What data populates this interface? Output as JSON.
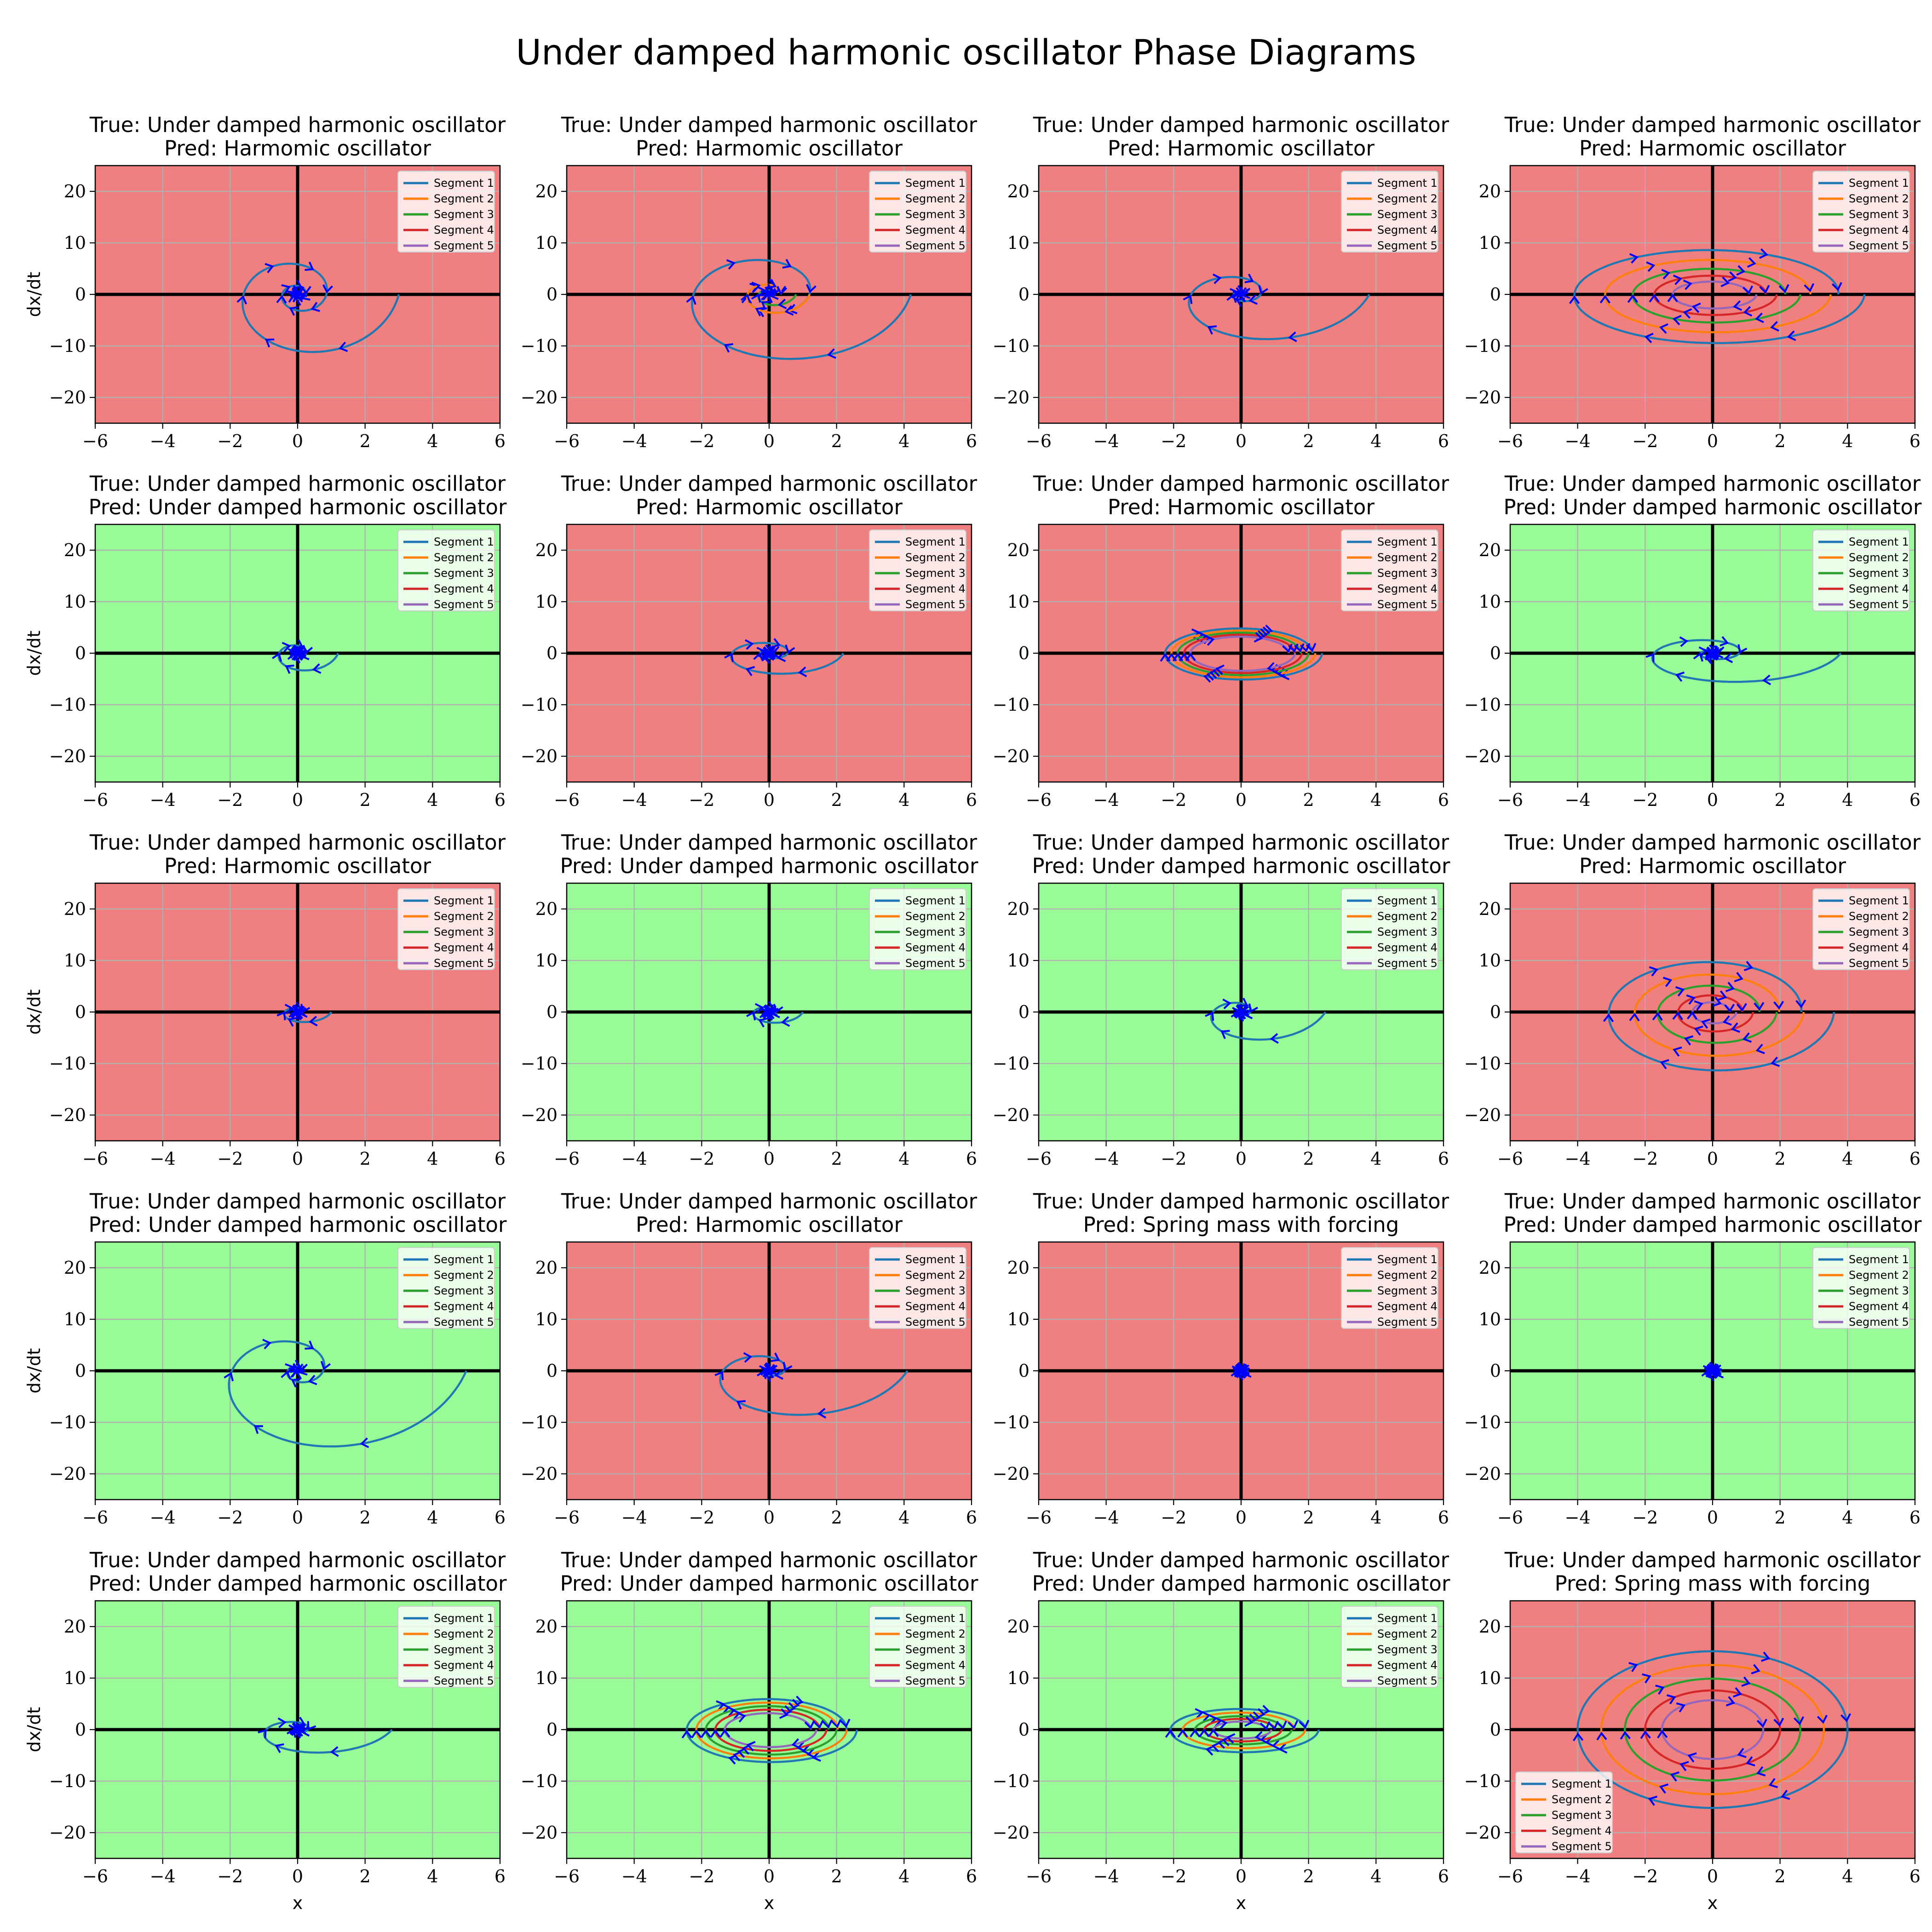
{
  "figure": {
    "suptitle": "Under damped harmonic oscillator Phase Diagrams",
    "x_label": "x",
    "y_label": "dx/dt"
  },
  "colors": {
    "correct_bg": "#98fb98",
    "incorrect_bg": "#f08080",
    "segments": [
      "#1f77b4",
      "#ff7f0e",
      "#2ca02c",
      "#d62728",
      "#9467bd"
    ],
    "arrow": "#0000ff",
    "axis_line": "#000000",
    "grid": "#b0b0b0"
  },
  "chart_data": {
    "type": "line",
    "layout_grid": {
      "rows": 5,
      "cols": 4
    },
    "xlim": [
      -6,
      6
    ],
    "ylim": [
      -25,
      25
    ],
    "x_ticks": [
      "−6",
      "−4",
      "−2",
      "0",
      "2",
      "4",
      "6"
    ],
    "y_ticks": [
      "20",
      "10",
      "0",
      "−10",
      "−20"
    ],
    "grid": true,
    "legend_entries": [
      "Segment 1",
      "Segment 2",
      "Segment 3",
      "Segment 4",
      "Segment 5"
    ],
    "panels": [
      {
        "title_true": "True: Under damped harmonic oscillator",
        "title_pred": "Pred: Harmomic oscillator",
        "correct": false,
        "legend_position": "upper right",
        "segments": [
          {
            "amp": 3.0,
            "dx": 5,
            "decay": 0.2,
            "turns": 4
          }
        ]
      },
      {
        "title_true": "True: Under damped harmonic oscillator",
        "title_pred": "Pred: Harmomic oscillator",
        "correct": false,
        "legend_position": "upper right",
        "segments": [
          {
            "amp": 4.2,
            "dx": 4,
            "decay": 0.2,
            "turns": 2
          },
          {
            "amp": 1.2,
            "dx": 4,
            "decay": 0.2,
            "turns": 1
          },
          {
            "amp": 0.8,
            "dx": 4,
            "decay": 0.3,
            "turns": 2
          }
        ]
      },
      {
        "title_true": "True: Under damped harmonic oscillator",
        "title_pred": "Pred: Harmomic oscillator",
        "correct": false,
        "legend_position": "upper right",
        "segments": [
          {
            "amp": 3.8,
            "dx": 3.5,
            "decay": 0.3,
            "turns": 3
          }
        ]
      },
      {
        "title_true": "True: Under damped harmonic oscillator",
        "title_pred": "Pred: Harmomic oscillator",
        "correct": false,
        "legend_position": "upper right",
        "segments": [
          {
            "amp": 4.5,
            "dx": 2.2,
            "decay": 0.03,
            "turns": 1
          },
          {
            "amp": 3.5,
            "dx": 2.2,
            "decay": 0.03,
            "turns": 1
          },
          {
            "amp": 2.6,
            "dx": 2.2,
            "decay": 0.03,
            "turns": 1
          },
          {
            "amp": 1.9,
            "dx": 2.2,
            "decay": 0.03,
            "turns": 1
          },
          {
            "amp": 1.3,
            "dx": 2.2,
            "decay": 0.03,
            "turns": 1
          }
        ]
      },
      {
        "title_true": "True: Under damped harmonic oscillator",
        "title_pred": "Pred: Under damped harmonic oscillator",
        "correct": true,
        "legend_position": "upper right",
        "segments": [
          {
            "amp": 1.2,
            "dx": 4,
            "decay": 0.25,
            "turns": 4
          }
        ]
      },
      {
        "title_true": "True: Under damped harmonic oscillator",
        "title_pred": "Pred: Harmomic oscillator",
        "correct": false,
        "legend_position": "upper right",
        "segments": [
          {
            "amp": 2.2,
            "dx": 2.5,
            "decay": 0.22,
            "turns": 4
          }
        ]
      },
      {
        "title_true": "True: Under damped harmonic oscillator",
        "title_pred": "Pred: Harmomic oscillator",
        "correct": false,
        "legend_position": "upper right",
        "segments": [
          {
            "amp": 2.4,
            "dx": 2.2,
            "decay": 0.02,
            "turns": 1
          },
          {
            "amp": 2.2,
            "dx": 2.2,
            "decay": 0.02,
            "turns": 1
          },
          {
            "amp": 2.0,
            "dx": 2.2,
            "decay": 0.02,
            "turns": 1
          },
          {
            "amp": 1.8,
            "dx": 2.2,
            "decay": 0.02,
            "turns": 1
          },
          {
            "amp": 1.6,
            "dx": 2.2,
            "decay": 0.02,
            "turns": 1
          }
        ]
      },
      {
        "title_true": "True: Under damped harmonic oscillator",
        "title_pred": "Pred: Under damped harmonic oscillator",
        "correct": true,
        "legend_position": "upper right",
        "segments": [
          {
            "amp": 3.8,
            "dx": 2.1,
            "decay": 0.25,
            "turns": 4
          }
        ]
      },
      {
        "title_true": "True: Under damped harmonic oscillator",
        "title_pred": "Pred: Harmomic oscillator",
        "correct": false,
        "legend_position": "upper right",
        "segments": [
          {
            "amp": 1.0,
            "dx": 3,
            "decay": 0.3,
            "turns": 3
          }
        ]
      },
      {
        "title_true": "True: Under damped harmonic oscillator",
        "title_pred": "Pred: Under damped harmonic oscillator",
        "correct": true,
        "legend_position": "upper right",
        "segments": [
          {
            "amp": 1.0,
            "dx": 3,
            "decay": 0.25,
            "turns": 3
          }
        ]
      },
      {
        "title_true": "True: Under damped harmonic oscillator",
        "title_pred": "Pred: Under damped harmonic oscillator",
        "correct": true,
        "legend_position": "upper right",
        "segments": [
          {
            "amp": 2.5,
            "dx": 3.5,
            "decay": 0.35,
            "turns": 3
          }
        ]
      },
      {
        "title_true": "True: Under damped harmonic oscillator",
        "title_pred": "Pred: Harmomic oscillator",
        "correct": false,
        "legend_position": "upper right",
        "segments": [
          {
            "amp": 3.6,
            "dx": 3.4,
            "decay": 0.05,
            "turns": 1
          },
          {
            "amp": 2.7,
            "dx": 3.4,
            "decay": 0.05,
            "turns": 1
          },
          {
            "amp": 1.9,
            "dx": 3.4,
            "decay": 0.05,
            "turns": 1
          },
          {
            "amp": 1.2,
            "dx": 3.4,
            "decay": 0.05,
            "turns": 1
          },
          {
            "amp": 0.7,
            "dx": 3.4,
            "decay": 0.05,
            "turns": 1
          }
        ]
      },
      {
        "title_true": "True: Under damped harmonic oscillator",
        "title_pred": "Pred: Under damped harmonic oscillator",
        "correct": true,
        "legend_position": "upper right",
        "segments": [
          {
            "amp": 5.0,
            "dx": 4.5,
            "decay": 0.3,
            "turns": 3
          }
        ]
      },
      {
        "title_true": "True: Under damped harmonic oscillator",
        "title_pred": "Pred: Harmomic oscillator",
        "correct": false,
        "legend_position": "upper right",
        "segments": [
          {
            "amp": 4.1,
            "dx": 3.4,
            "decay": 0.35,
            "turns": 3
          }
        ]
      },
      {
        "title_true": "True: Under damped harmonic oscillator",
        "title_pred": "Pred: Spring mass with forcing",
        "correct": false,
        "legend_position": "upper right",
        "segments": [
          {
            "amp": 0.2,
            "dx": 4,
            "decay": 0.2,
            "turns": 3
          }
        ]
      },
      {
        "title_true": "True: Under damped harmonic oscillator",
        "title_pred": "Pred: Under damped harmonic oscillator",
        "correct": true,
        "legend_position": "upper right",
        "segments": [
          {
            "amp": 0.25,
            "dx": 4,
            "decay": 0.2,
            "turns": 3
          }
        ]
      },
      {
        "title_true": "True: Under damped harmonic oscillator",
        "title_pred": "Pred: Under damped harmonic oscillator",
        "correct": true,
        "legend_position": "upper right",
        "segments": [
          {
            "amp": 2.8,
            "dx": 2.6,
            "decay": 0.35,
            "turns": 3
          }
        ]
      },
      {
        "title_true": "True: Under damped harmonic oscillator",
        "title_pred": "Pred: Under damped harmonic oscillator",
        "correct": true,
        "legend_position": "upper right",
        "segments": [
          {
            "amp": 2.6,
            "dx": 2.5,
            "decay": 0.02,
            "turns": 1
          },
          {
            "amp": 2.3,
            "dx": 2.5,
            "decay": 0.02,
            "turns": 1
          },
          {
            "amp": 2.0,
            "dx": 2.5,
            "decay": 0.02,
            "turns": 1
          },
          {
            "amp": 1.7,
            "dx": 2.5,
            "decay": 0.02,
            "turns": 1
          },
          {
            "amp": 1.4,
            "dx": 2.5,
            "decay": 0.02,
            "turns": 1
          }
        ]
      },
      {
        "title_true": "True: Under damped harmonic oscillator",
        "title_pred": "Pred: Under damped harmonic oscillator",
        "correct": true,
        "legend_position": "upper right",
        "segments": [
          {
            "amp": 2.3,
            "dx": 2.0,
            "decay": 0.03,
            "turns": 1
          },
          {
            "amp": 1.9,
            "dx": 2.0,
            "decay": 0.03,
            "turns": 1
          },
          {
            "amp": 1.5,
            "dx": 2.0,
            "decay": 0.03,
            "turns": 1
          },
          {
            "amp": 1.2,
            "dx": 2.0,
            "decay": 0.03,
            "turns": 1
          },
          {
            "amp": 0.9,
            "dx": 2.0,
            "decay": 0.03,
            "turns": 1
          }
        ]
      },
      {
        "title_true": "True: Under damped harmonic oscillator",
        "title_pred": "Pred: Spring mass with forcing",
        "correct": false,
        "legend_position": "lower left",
        "segments": [
          {
            "amp": 4.0,
            "dx": 3.8,
            "decay": 0.0,
            "turns": 1
          },
          {
            "amp": 3.3,
            "dx": 3.8,
            "decay": 0.0,
            "turns": 1
          },
          {
            "amp": 2.6,
            "dx": 3.8,
            "decay": 0.0,
            "turns": 1
          },
          {
            "amp": 2.0,
            "dx": 3.8,
            "decay": 0.0,
            "turns": 1
          },
          {
            "amp": 1.5,
            "dx": 3.8,
            "decay": 0.0,
            "turns": 1
          }
        ]
      }
    ]
  }
}
